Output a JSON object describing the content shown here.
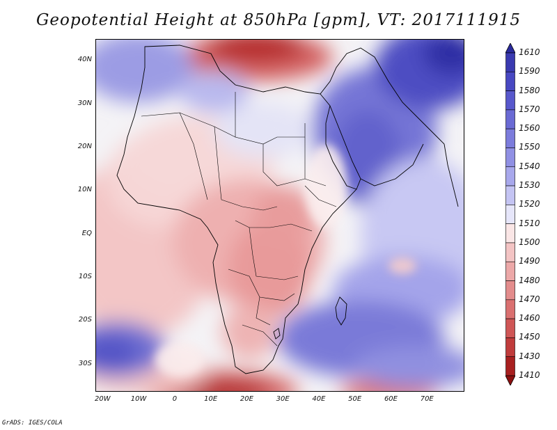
{
  "title": "Geopotential Height at 850hPa [gpm], VT: 2017111915",
  "credit": "GrADS: IGES/COLA",
  "map": {
    "type": "filled-contour",
    "region": "Africa and western Indian Ocean",
    "lat_range": [
      -36,
      45
    ],
    "lon_range": [
      -22,
      80
    ],
    "lat_labels": [
      "40N",
      "30N",
      "20N",
      "10N",
      "EQ",
      "10S",
      "20S",
      "30S"
    ],
    "lat_values": [
      40,
      30,
      20,
      10,
      0,
      -10,
      -20,
      -30
    ],
    "lon_labels": [
      "20W",
      "10W",
      "0",
      "10E",
      "20E",
      "30E",
      "40E",
      "50E",
      "60E",
      "70E"
    ],
    "lon_values": [
      -20,
      -10,
      0,
      10,
      20,
      30,
      40,
      50,
      60,
      70
    ],
    "overlay": "country boundaries and coastlines (black)"
  },
  "colorbar": {
    "labels": [
      "1610",
      "1590",
      "1580",
      "1570",
      "1560",
      "1550",
      "1540",
      "1530",
      "1520",
      "1510",
      "1500",
      "1490",
      "1480",
      "1470",
      "1460",
      "1450",
      "1430",
      "1410"
    ],
    "colors": [
      "#2a2a9c",
      "#3a3ab0",
      "#4848c2",
      "#5858cc",
      "#6a6ad4",
      "#7c7cdc",
      "#9090e4",
      "#a8a8ec",
      "#c4c4f3",
      "#e6e6fa",
      "#fae6e6",
      "#f3c4c4",
      "#eca8a8",
      "#e38c8c",
      "#da7070",
      "#cf5656",
      "#c03c3c",
      "#a82020",
      "#8c1010"
    ],
    "arrows": "both ends"
  }
}
